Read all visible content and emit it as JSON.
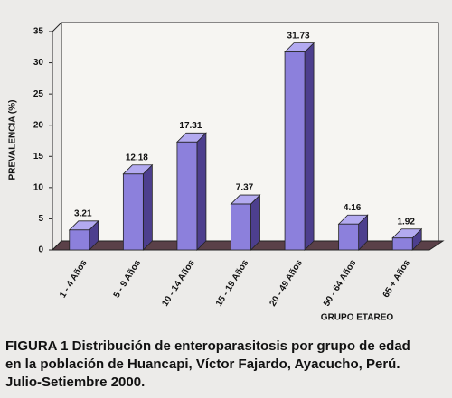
{
  "chart_data": {
    "type": "bar3d",
    "y_label": "PREVALENCIA (%)",
    "x_label": "GRUPO ETAREO",
    "categories": [
      "1 - 4 Años",
      "5 - 9 Años",
      "10 - 14 Años",
      "15 - 19 Años",
      "20 - 49 Años",
      "50 - 64 Años",
      "65 + Años"
    ],
    "values": [
      3.21,
      12.18,
      17.31,
      7.37,
      31.73,
      4.16,
      1.92
    ],
    "color": "#8c80dc",
    "ylim": [
      0,
      35
    ],
    "yticks": [
      0,
      5,
      10,
      15,
      20,
      25,
      30,
      35
    ],
    "grid": false
  },
  "caption": [
    "FIGURA 1 Distribución de enteroparasitosis por grupo de edad",
    "en la población de Huancapi, Víctor Fajardo, Ayacucho, Perú.",
    "Julio-Setiembre 2000."
  ]
}
